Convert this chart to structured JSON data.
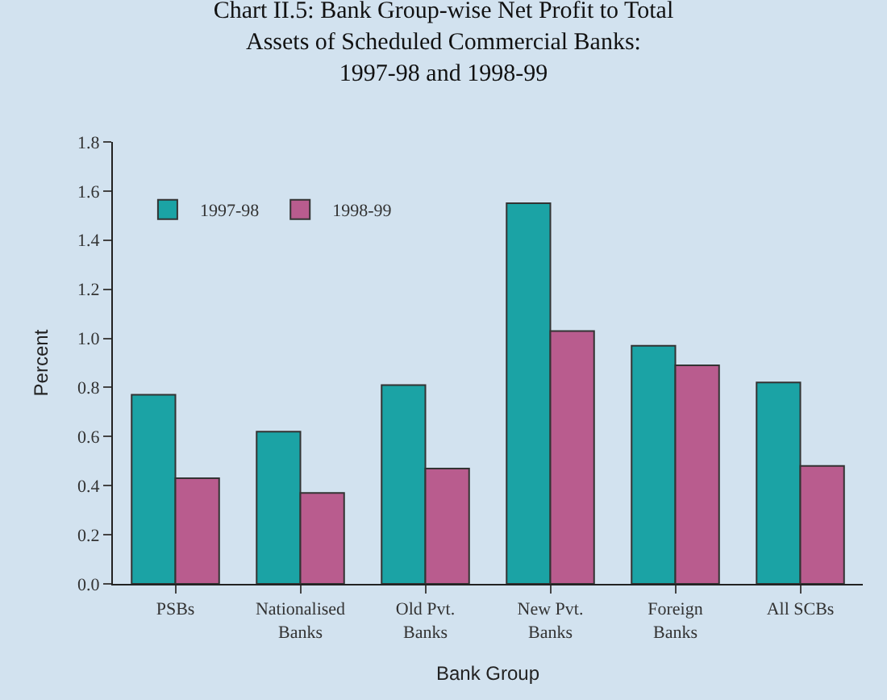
{
  "chart_data": {
    "type": "bar",
    "title": "Chart II.5: Bank Group-wise Net Profit to Total\nAssets of Scheduled Commercial Banks:\n1997-98 and 1998-99",
    "xlabel": "Bank Group",
    "ylabel": "Percent",
    "categories": [
      "PSBs",
      "Nationalised\nBanks",
      "Old Pvt.\nBanks",
      "New Pvt.\nBanks",
      "Foreign\nBanks",
      "All SCBs"
    ],
    "series": [
      {
        "name": "1997-98",
        "color": "#1ba3a5",
        "values": [
          0.77,
          0.62,
          0.81,
          1.55,
          0.97,
          0.82
        ]
      },
      {
        "name": "1998-99",
        "color": "#b95c8e",
        "values": [
          0.43,
          0.37,
          0.47,
          1.03,
          0.89,
          0.48
        ]
      }
    ],
    "ylim": [
      0,
      1.8
    ],
    "yticks": [
      {
        "value": 0,
        "label": "0.0"
      },
      0.2,
      0.4,
      0.6,
      0.8,
      {
        "value": 1,
        "label": "1.0"
      },
      1.2,
      1.4,
      1.6,
      1.8
    ],
    "grid": false,
    "legend": "top left"
  }
}
